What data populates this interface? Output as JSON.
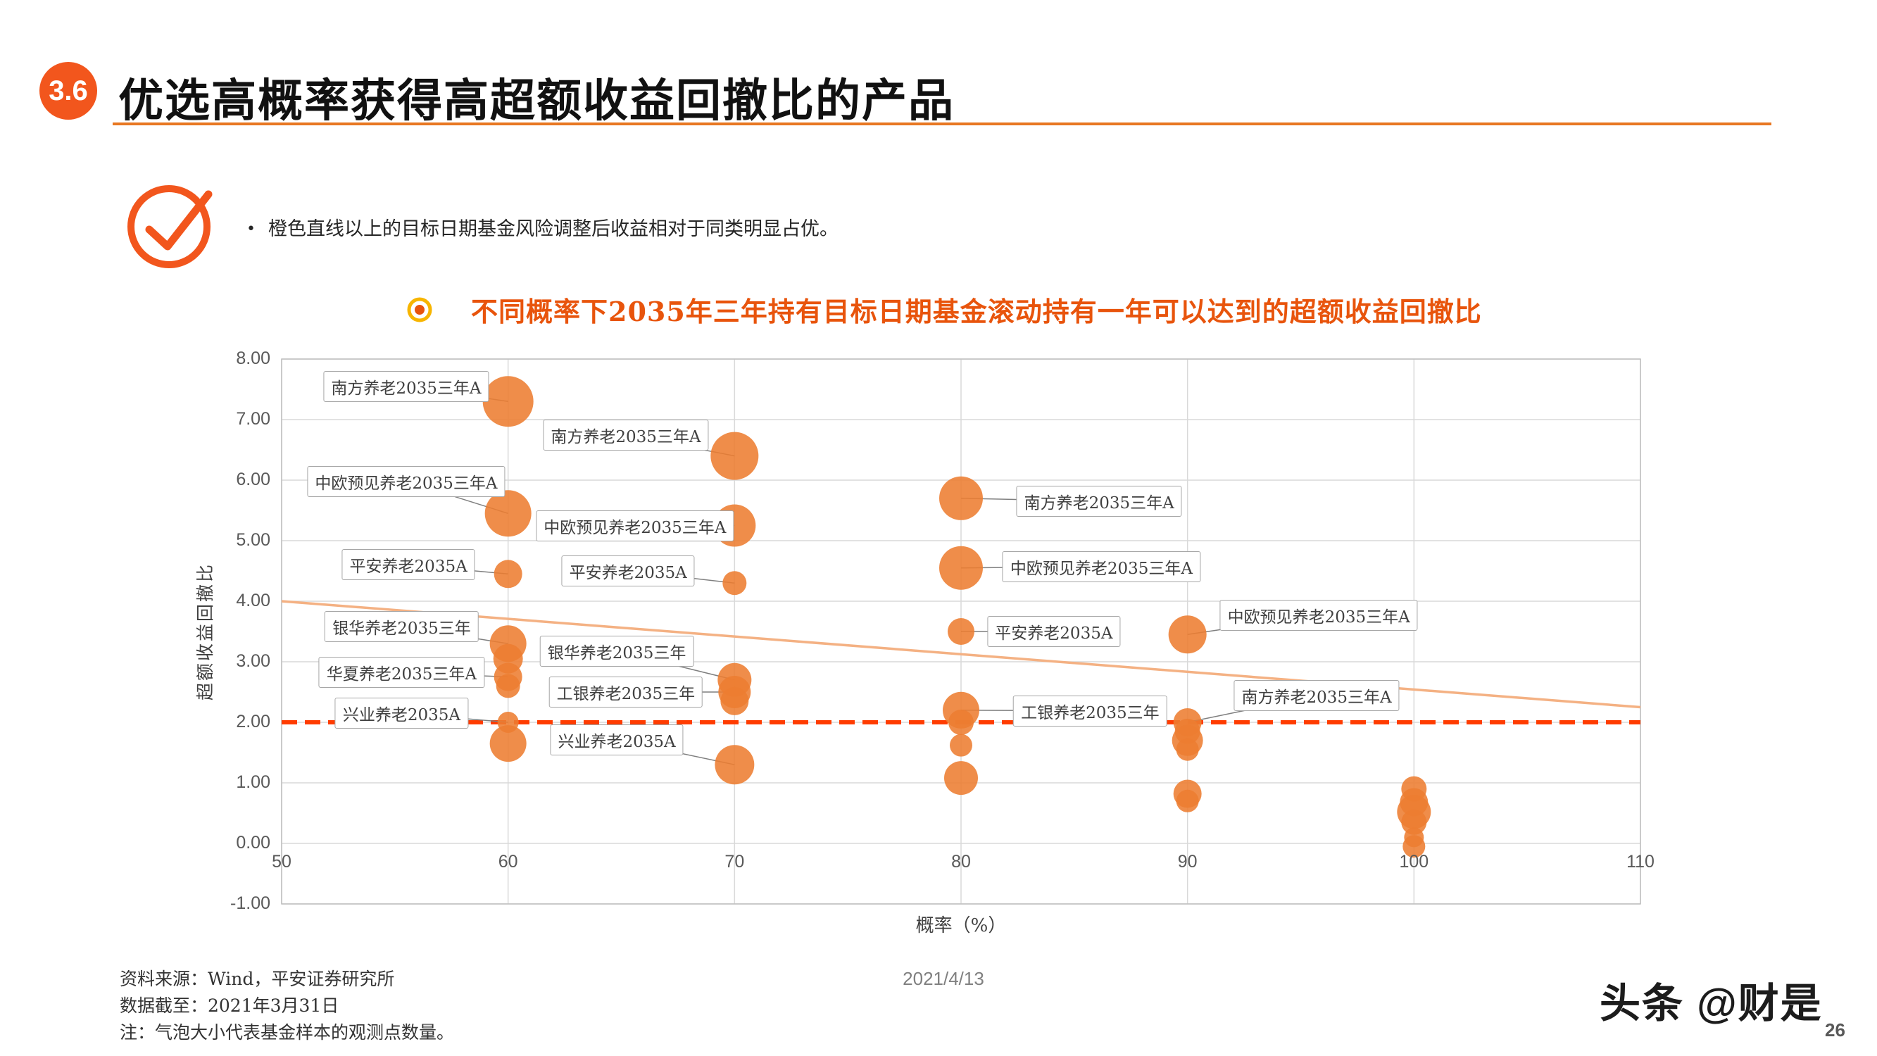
{
  "header": {
    "badge": "3.6",
    "title": "优选高概率获得高超额收益回撤比的产品"
  },
  "callout": {
    "bullet_glyph": "•",
    "bullet": "橙色直线以上的目标日期基金风险调整后收益相对于同类明显占优。"
  },
  "chart_data": {
    "type": "scatter",
    "title": "不同概率下2035年三年持有目标日期基金滚动持有一年可以达到的超额收益回撤比",
    "xlabel": "概率（%）",
    "ylabel": "超额收益回撤比",
    "xlim": [
      50,
      110
    ],
    "ylim": [
      -1,
      8
    ],
    "grid": true,
    "bubble_color": "#ED7D31",
    "x_ticks": [
      {
        "v": 50,
        "label": "50"
      },
      {
        "v": 60,
        "label": "60"
      },
      {
        "v": 70,
        "label": "70"
      },
      {
        "v": 80,
        "label": "80"
      },
      {
        "v": 90,
        "label": "90"
      },
      {
        "v": 100,
        "label": "100"
      },
      {
        "v": 110,
        "label": "110"
      }
    ],
    "y_ticks": [
      {
        "v": 8,
        "label": "8.00"
      },
      {
        "v": 7,
        "label": "7.00"
      },
      {
        "v": 6,
        "label": "6.00"
      },
      {
        "v": 5,
        "label": "5.00"
      },
      {
        "v": 4,
        "label": "4.00"
      },
      {
        "v": 3,
        "label": "3.00"
      },
      {
        "v": 2,
        "label": "2.00"
      },
      {
        "v": 1,
        "label": "1.00"
      },
      {
        "v": 0,
        "label": "0.00"
      },
      {
        "v": -1,
        "label": "-1.00"
      }
    ],
    "reference_line": {
      "y": 2.0,
      "color": "#FF3C00"
    },
    "trend_line": {
      "x1": 50,
      "y1": 4.0,
      "x2": 110,
      "y2": 2.25,
      "color": "#F4B183"
    },
    "bubbles": [
      {
        "x": 60,
        "y": 7.3,
        "r": 36
      },
      {
        "x": 70,
        "y": 6.4,
        "r": 34
      },
      {
        "x": 60,
        "y": 5.45,
        "r": 33
      },
      {
        "x": 70,
        "y": 5.25,
        "r": 30
      },
      {
        "x": 80,
        "y": 5.7,
        "r": 31
      },
      {
        "x": 60,
        "y": 4.45,
        "r": 20
      },
      {
        "x": 70,
        "y": 4.3,
        "r": 17
      },
      {
        "x": 80,
        "y": 4.55,
        "r": 31
      },
      {
        "x": 80,
        "y": 3.5,
        "r": 19
      },
      {
        "x": 90,
        "y": 3.45,
        "r": 27
      },
      {
        "x": 60,
        "y": 3.3,
        "r": 26
      },
      {
        "x": 60,
        "y": 3.05,
        "r": 21
      },
      {
        "x": 60,
        "y": 2.75,
        "r": 20
      },
      {
        "x": 60,
        "y": 2.6,
        "r": 17
      },
      {
        "x": 70,
        "y": 2.7,
        "r": 24
      },
      {
        "x": 70,
        "y": 2.5,
        "r": 23
      },
      {
        "x": 70,
        "y": 2.35,
        "r": 20
      },
      {
        "x": 60,
        "y": 2.0,
        "r": 15
      },
      {
        "x": 60,
        "y": 1.65,
        "r": 26
      },
      {
        "x": 70,
        "y": 1.3,
        "r": 28
      },
      {
        "x": 80,
        "y": 2.2,
        "r": 26
      },
      {
        "x": 80,
        "y": 2.0,
        "r": 18
      },
      {
        "x": 80,
        "y": 1.62,
        "r": 16
      },
      {
        "x": 80,
        "y": 1.08,
        "r": 24
      },
      {
        "x": 90,
        "y": 2.0,
        "r": 20
      },
      {
        "x": 90,
        "y": 1.85,
        "r": 18
      },
      {
        "x": 90,
        "y": 1.7,
        "r": 22
      },
      {
        "x": 90,
        "y": 1.55,
        "r": 16
      },
      {
        "x": 90,
        "y": 0.82,
        "r": 20
      },
      {
        "x": 90,
        "y": 0.7,
        "r": 16
      },
      {
        "x": 100,
        "y": 0.9,
        "r": 18
      },
      {
        "x": 100,
        "y": 0.68,
        "r": 20
      },
      {
        "x": 100,
        "y": 0.52,
        "r": 24
      },
      {
        "x": 100,
        "y": 0.35,
        "r": 18
      },
      {
        "x": 100,
        "y": 0.1,
        "r": 14
      },
      {
        "x": 100,
        "y": -0.05,
        "r": 16
      }
    ],
    "labels": [
      {
        "text": "南方养老2035三年A",
        "x": 55.5,
        "y": 7.55,
        "tx": 60,
        "ty": 7.3
      },
      {
        "text": "南方养老2035三年A",
        "x": 65.2,
        "y": 6.75,
        "tx": 70,
        "ty": 6.4
      },
      {
        "text": "中欧预见养老2035三年A",
        "x": 55.5,
        "y": 5.98,
        "tx": 60,
        "ty": 5.45
      },
      {
        "text": "中欧预见养老2035三年A",
        "x": 65.6,
        "y": 5.25,
        "tx": 70,
        "ty": 5.25
      },
      {
        "text": "南方养老2035三年A",
        "x": 86.1,
        "y": 5.65,
        "tx": 80,
        "ty": 5.7
      },
      {
        "text": "平安养老2035A",
        "x": 55.6,
        "y": 4.6,
        "tx": 60,
        "ty": 4.45
      },
      {
        "text": "平安养老2035A",
        "x": 65.3,
        "y": 4.5,
        "tx": 70,
        "ty": 4.3
      },
      {
        "text": "中欧预见养老2035三年A",
        "x": 86.2,
        "y": 4.57,
        "tx": 80,
        "ty": 4.55
      },
      {
        "text": "平安养老2035A",
        "x": 84.1,
        "y": 3.5,
        "tx": 80,
        "ty": 3.5
      },
      {
        "text": "中欧预见养老2035三年A",
        "x": 95.8,
        "y": 3.77,
        "tx": 90,
        "ty": 3.45
      },
      {
        "text": "银华养老2035三年",
        "x": 55.3,
        "y": 3.58,
        "tx": 60,
        "ty": 3.3
      },
      {
        "text": "华夏养老2035三年A",
        "x": 55.3,
        "y": 2.82,
        "tx": 60,
        "ty": 2.75
      },
      {
        "text": "兴业养老2035A",
        "x": 55.3,
        "y": 2.15,
        "tx": 60,
        "ty": 2.0
      },
      {
        "text": "银华养老2035三年",
        "x": 64.8,
        "y": 3.18,
        "tx": 70,
        "ty": 2.7
      },
      {
        "text": "工银养老2035三年",
        "x": 65.2,
        "y": 2.5,
        "tx": 70,
        "ty": 2.5
      },
      {
        "text": "兴业养老2035A",
        "x": 64.8,
        "y": 1.71,
        "tx": 70,
        "ty": 1.3
      },
      {
        "text": "工银养老2035三年",
        "x": 85.7,
        "y": 2.19,
        "tx": 80,
        "ty": 2.2
      },
      {
        "text": "南方养老2035三年A",
        "x": 95.7,
        "y": 2.44,
        "tx": 90,
        "ty": 2.0
      }
    ]
  },
  "footer": {
    "source": "资料来源：Wind，平安证券研究所",
    "as_of": "数据截至：2021年3月31日",
    "note": "注：气泡大小代表基金样本的观测点数量。",
    "date": "2021/4/13",
    "watermark": "头条 @财是",
    "page": "26"
  }
}
